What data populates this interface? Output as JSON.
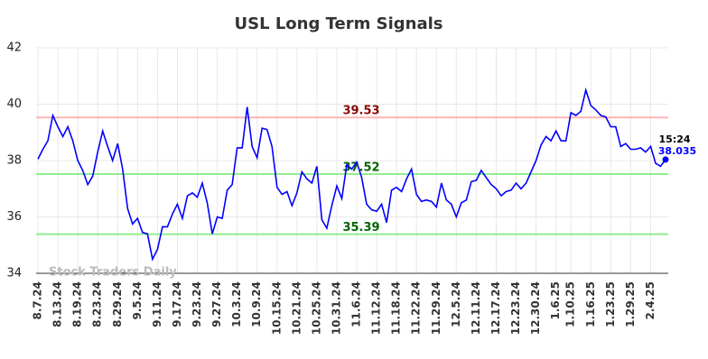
{
  "chart_data": {
    "type": "line",
    "title": "USL Long Term Signals",
    "watermark": "Stock Traders Daily",
    "categories": [
      "8.7.24",
      null,
      null,
      null,
      "8.13.24",
      null,
      null,
      null,
      "8.19.24",
      null,
      null,
      null,
      "8.23.24",
      null,
      null,
      null,
      "8.29.24",
      null,
      null,
      null,
      "9.5.24",
      null,
      null,
      null,
      "9.11.24",
      null,
      null,
      null,
      "9.17.24",
      null,
      null,
      null,
      "9.23.24",
      null,
      null,
      null,
      "9.27.24",
      null,
      null,
      null,
      "10.3.24",
      null,
      null,
      null,
      "10.9.24",
      null,
      null,
      null,
      "10.15.24",
      null,
      null,
      null,
      "10.21.24",
      null,
      null,
      null,
      "10.25.24",
      null,
      null,
      null,
      "10.31.24",
      null,
      null,
      null,
      "11.6.24",
      null,
      null,
      null,
      "11.12.24",
      null,
      null,
      null,
      "11.18.24",
      null,
      null,
      null,
      "11.22.24",
      null,
      null,
      null,
      "11.29.24",
      null,
      null,
      null,
      "12.5.24",
      null,
      null,
      null,
      "12.11.24",
      null,
      null,
      null,
      "12.17.24",
      null,
      null,
      null,
      "12.23.24",
      null,
      null,
      null,
      "12.30.24",
      null,
      null,
      null,
      "1.6.25",
      null,
      null,
      "1.10.25",
      null,
      null,
      null,
      "1.16.25",
      null,
      null,
      null,
      "1.23.25",
      null,
      null,
      null,
      "1.29.25",
      null,
      null,
      null,
      "2.4.25",
      null,
      null,
      null
    ],
    "values": [
      38.05,
      38.4,
      38.7,
      39.6,
      39.2,
      38.85,
      39.2,
      38.7,
      38.0,
      37.65,
      37.15,
      37.45,
      38.3,
      39.05,
      38.5,
      38.0,
      38.6,
      37.7,
      36.3,
      35.75,
      35.95,
      35.45,
      35.4,
      34.5,
      34.85,
      35.65,
      35.65,
      36.1,
      36.45,
      35.95,
      36.75,
      36.85,
      36.7,
      37.2,
      36.5,
      35.4,
      36.0,
      35.95,
      36.95,
      37.15,
      38.45,
      38.45,
      39.9,
      38.5,
      38.1,
      39.15,
      39.1,
      38.5,
      37.05,
      36.8,
      36.9,
      36.4,
      36.85,
      37.6,
      37.35,
      37.2,
      37.8,
      35.9,
      35.6,
      36.4,
      37.1,
      36.65,
      37.85,
      37.7,
      37.95,
      37.4,
      36.45,
      36.25,
      36.2,
      36.45,
      35.8,
      36.95,
      37.05,
      36.9,
      37.35,
      37.7,
      36.8,
      36.55,
      36.6,
      36.55,
      36.35,
      37.2,
      36.6,
      36.45,
      36.0,
      36.5,
      36.6,
      37.25,
      37.3,
      37.65,
      37.4,
      37.15,
      37.0,
      36.75,
      36.9,
      36.95,
      37.2,
      37.0,
      37.2,
      37.6,
      38.0,
      38.55,
      38.85,
      38.7,
      39.05,
      38.7,
      38.7,
      39.7,
      39.6,
      39.75,
      40.5,
      39.95,
      39.8,
      39.6,
      39.55,
      39.2,
      39.2,
      38.5,
      38.6,
      38.4,
      38.4,
      38.45,
      38.3,
      38.5,
      37.9,
      37.8,
      38.035
    ],
    "color": "#0000ff",
    "last_time": "15:24",
    "ylim": [
      34,
      42
    ],
    "yticks": [
      34,
      36,
      38,
      40,
      42
    ],
    "grid": true,
    "hlines": [
      {
        "value": 39.53,
        "color": "#ffb3b3",
        "label_color": "#8b0000"
      },
      {
        "value": 37.52,
        "color": "#90ee90",
        "label_color": "#006400"
      },
      {
        "value": 35.39,
        "color": "#90ee90",
        "label_color": "#006400"
      }
    ]
  }
}
